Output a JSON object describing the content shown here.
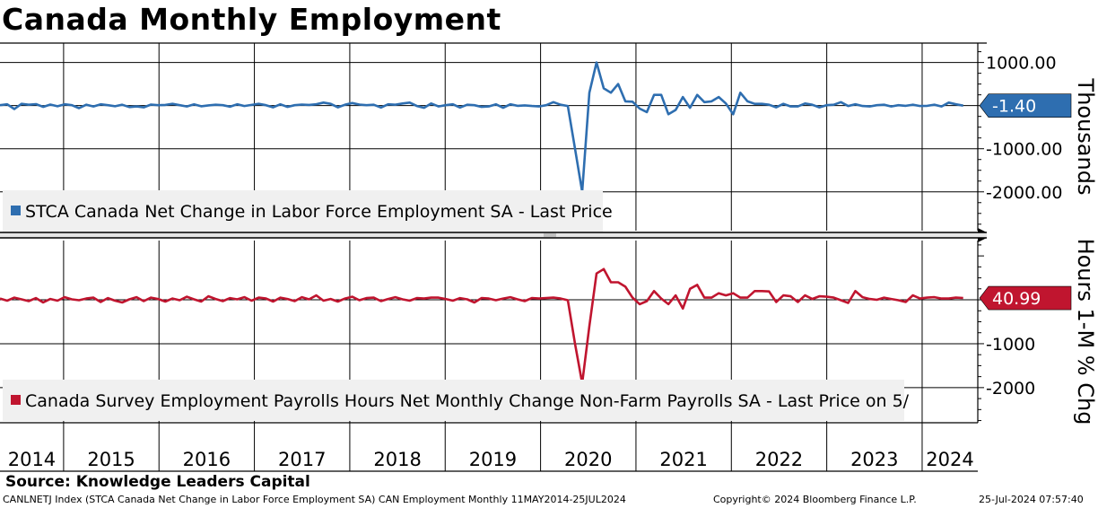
{
  "page": {
    "title": "Canada Monthly Employment",
    "source": "Source: Knowledge Leaders Capital",
    "footer_left": "CANLNETJ Index (STCA Canada Net Change in Labor Force Employment SA) CAN Employment  Monthly 11MAY2014-25JUL2024",
    "footer_mid": "Copyright© 2024 Bloomberg Finance L.P.",
    "footer_right": "25-Jul-2024 07:57:40"
  },
  "chart_data": [
    {
      "type": "line",
      "panel": "top",
      "x_labels": [
        "2014",
        "2015",
        "2016",
        "2017",
        "2018",
        "2019",
        "2020",
        "2021",
        "2022",
        "2023",
        "2024"
      ],
      "ylabel": "Thousands",
      "y_tick_labels": [
        "1000.00",
        "-1000.00",
        "-2000.00"
      ],
      "y_ticks": [
        1000,
        -1000,
        -2000
      ],
      "ylim": [
        -2900,
        1450
      ],
      "grid": true,
      "legend": "bottom-left",
      "color": "#2e6eb0",
      "series": [
        {
          "name": "STCA Canada Net Change in Labor Force Employment SA - Last Price",
          "last_value_label": "-1.40",
          "last_value": -1.4,
          "values": [
            10,
            30,
            -80,
            40,
            20,
            35,
            -30,
            25,
            -15,
            30,
            10,
            -60,
            20,
            -20,
            30,
            10,
            -15,
            20,
            -35,
            -20,
            -40,
            25,
            10,
            15,
            40,
            10,
            -20,
            30,
            -15,
            5,
            20,
            10,
            -25,
            30,
            -10,
            15,
            40,
            10,
            -40,
            30,
            -30,
            10,
            25,
            15,
            30,
            70,
            40,
            -40,
            20,
            60,
            25,
            10,
            20,
            -45,
            30,
            20,
            50,
            70,
            -10,
            -50,
            50,
            -20,
            10,
            30,
            -45,
            20,
            10,
            -30,
            -20,
            30,
            -50,
            30,
            -5,
            5,
            -10,
            -20,
            10,
            80,
            20,
            -10,
            -1000,
            -2000,
            300,
            1000,
            400,
            300,
            500,
            100,
            90,
            -70,
            -150,
            250,
            250,
            -200,
            -100,
            200,
            -50,
            250,
            80,
            100,
            200,
            50,
            -200,
            300,
            100,
            40,
            40,
            20,
            -40,
            40,
            -20,
            -20,
            50,
            20,
            -40,
            10,
            20,
            80,
            -10,
            30,
            -10,
            -20,
            10,
            20,
            -20,
            10,
            -5,
            20,
            -10,
            -5,
            20,
            -20,
            70,
            30,
            -1.4
          ]
        }
      ]
    },
    {
      "type": "line",
      "panel": "bottom",
      "x_labels": [
        "2014",
        "2015",
        "2016",
        "2017",
        "2018",
        "2019",
        "2020",
        "2021",
        "2022",
        "2023",
        "2024"
      ],
      "ylabel": "Hours 1-M % Chg",
      "y_tick_labels": [
        "-1000",
        "-2000"
      ],
      "y_ticks": [
        -1000,
        -2000
      ],
      "ylim": [
        -2800,
        1350
      ],
      "grid": true,
      "legend": "bottom-left",
      "color": "#c0152f",
      "series": [
        {
          "name": "Canada Survey Employment Payrolls Hours Net Monthly Change Non-Farm Payrolls SA - Last Price on 5/",
          "last_value_label": "40.99",
          "last_value": 40.99,
          "values": [
            30,
            -20,
            50,
            10,
            -30,
            40,
            -60,
            20,
            -20,
            60,
            10,
            -10,
            30,
            50,
            -50,
            40,
            -20,
            -60,
            10,
            60,
            -30,
            50,
            20,
            -40,
            30,
            -10,
            70,
            10,
            -40,
            80,
            20,
            -30,
            40,
            10,
            60,
            -20,
            50,
            30,
            -40,
            50,
            20,
            -30,
            60,
            10,
            100,
            -20,
            20,
            -40,
            30,
            70,
            -10,
            40,
            50,
            -30,
            20,
            60,
            10,
            -20,
            40,
            30,
            50,
            50,
            20,
            -20,
            40,
            10,
            -60,
            40,
            30,
            -10,
            30,
            60,
            10,
            -30,
            40,
            30,
            40,
            50,
            30,
            -10,
            -1000,
            -1900,
            -600,
            600,
            700,
            400,
            400,
            300,
            50,
            -100,
            -30,
            200,
            30,
            -100,
            100,
            -200,
            250,
            340,
            50,
            50,
            150,
            100,
            150,
            50,
            50,
            200,
            200,
            190,
            -50,
            100,
            80,
            -50,
            100,
            20,
            80,
            70,
            50,
            -10,
            -70,
            200,
            60,
            20,
            0,
            50,
            20,
            -10,
            -50,
            100,
            30,
            50,
            60,
            30,
            30,
            50,
            40.99
          ]
        }
      ]
    }
  ]
}
